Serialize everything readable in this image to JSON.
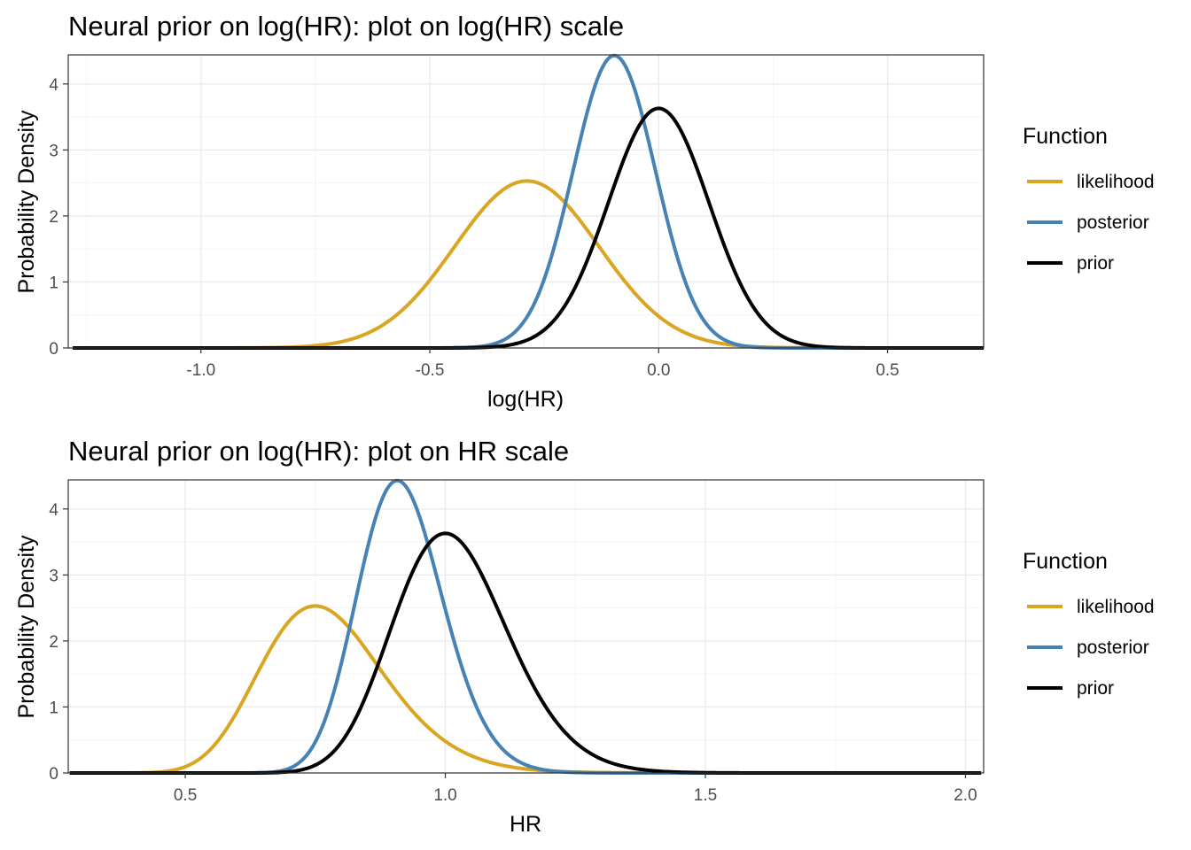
{
  "colors": {
    "likelihood": "#DAA520",
    "posterior": "#4682B4",
    "prior": "#000000"
  },
  "chart_data": [
    {
      "type": "line",
      "title": "Neural prior on log(HR): plot on log(HR) scale",
      "xlabel": "log(HR)",
      "ylabel": "Probability Density",
      "xlim": [
        -1.29,
        0.71
      ],
      "ylim": [
        0,
        4.44
      ],
      "x_ticks": [
        -1.0,
        -0.5,
        0.0,
        0.5
      ],
      "x_tick_labels": [
        "-1.0",
        "-0.5",
        "0.0",
        "0.5"
      ],
      "y_ticks": [
        0,
        1,
        2,
        3,
        4
      ],
      "y_tick_labels": [
        "0",
        "1",
        "2",
        "3",
        "4"
      ],
      "grid": true,
      "legend": {
        "title": "Function",
        "position": "right",
        "entries": [
          "likelihood",
          "posterior",
          "prior"
        ]
      },
      "x_scale": "log",
      "series": [
        {
          "name": "likelihood",
          "distribution": "normal",
          "mean": -0.288,
          "sd": 0.158,
          "peak": 2.53
        },
        {
          "name": "posterior",
          "distribution": "normal",
          "mean": -0.097,
          "sd": 0.09,
          "peak": 4.43
        },
        {
          "name": "prior",
          "distribution": "normal",
          "mean": 0.0,
          "sd": 0.11,
          "peak": 3.63
        }
      ]
    },
    {
      "type": "line",
      "title": "Neural prior on log(HR): plot on HR scale",
      "xlabel": "HR",
      "ylabel": "Probability Density",
      "xlim": [
        0.275,
        2.035
      ],
      "ylim": [
        0,
        4.44
      ],
      "x_ticks": [
        0.5,
        1.0,
        1.5,
        2.0
      ],
      "x_tick_labels": [
        "0.5",
        "1.0",
        "1.5",
        "2.0"
      ],
      "y_ticks": [
        0,
        1,
        2,
        3,
        4
      ],
      "y_tick_labels": [
        "0",
        "1",
        "2",
        "3",
        "4"
      ],
      "grid": true,
      "legend": {
        "title": "Function",
        "position": "right",
        "entries": [
          "likelihood",
          "posterior",
          "prior"
        ]
      },
      "x_scale": "linear",
      "series": [
        {
          "name": "likelihood",
          "distribution": "normal",
          "mean": -0.288,
          "sd": 0.158,
          "peak": 2.53
        },
        {
          "name": "posterior",
          "distribution": "normal",
          "mean": -0.097,
          "sd": 0.09,
          "peak": 4.43
        },
        {
          "name": "prior",
          "distribution": "normal",
          "mean": 0.0,
          "sd": 0.11,
          "peak": 3.63
        }
      ]
    }
  ]
}
